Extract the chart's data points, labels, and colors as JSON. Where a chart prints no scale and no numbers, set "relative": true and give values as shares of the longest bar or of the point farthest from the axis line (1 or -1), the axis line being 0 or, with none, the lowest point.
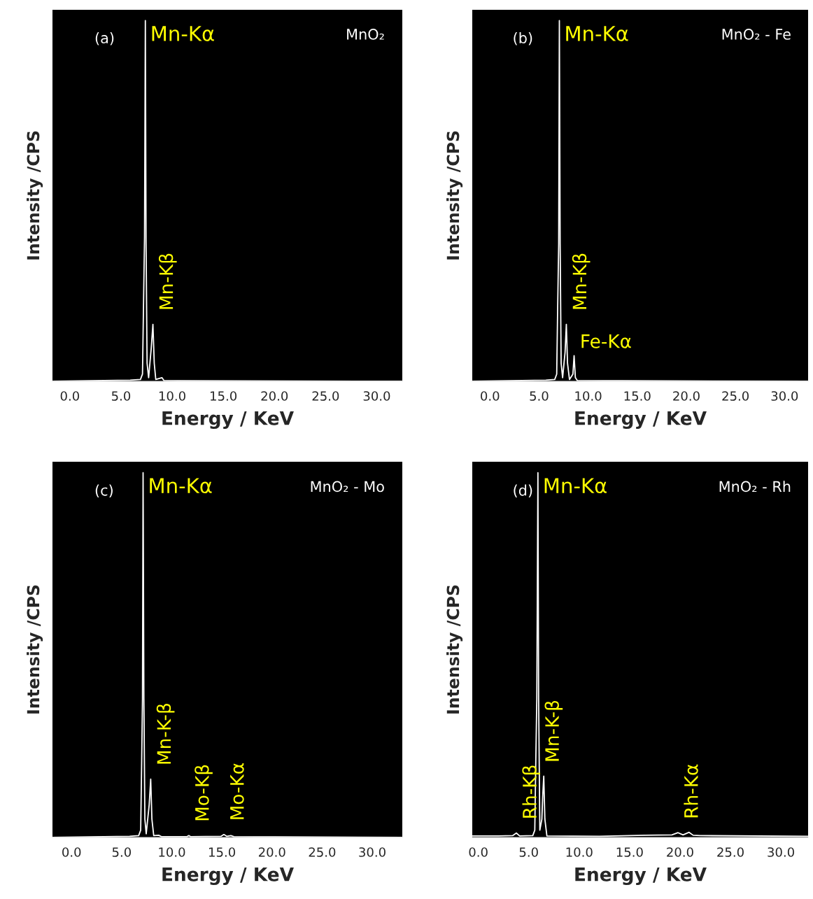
{
  "chart_data": [
    {
      "type": "line",
      "relative": true,
      "xlabel": "Energy / KeV",
      "ylabel": "Intensity /CPS",
      "xlim": [
        -1.7,
        32.5
      ],
      "xticks": [
        {
          "value": 0,
          "label": "0.0"
        },
        {
          "value": 5,
          "label": "5.0"
        },
        {
          "value": 10,
          "label": "10.0"
        },
        {
          "value": 15,
          "label": "15.0"
        },
        {
          "value": 20,
          "label": "20.0"
        },
        {
          "value": 25,
          "label": "25.0"
        },
        {
          "value": 30,
          "label": "30.0"
        }
      ],
      "tick_labels": "x",
      "grid": false,
      "legend": false,
      "series": [
        {
          "color": "#ffffff",
          "x": [
            -1.7,
            5.9,
            6.9,
            7.1,
            7.2,
            7.3,
            7.38,
            7.45,
            7.55,
            7.7,
            7.95,
            8.12,
            8.25,
            8.4,
            9.0,
            9.2,
            32.5
          ],
          "values": [
            0,
            0.003,
            0.005,
            0.02,
            0.21,
            0.4,
            1.0,
            0.38,
            0.05,
            0.01,
            0.09,
            0.158,
            0.05,
            0.005,
            0.01,
            0.002,
            0
          ]
        }
      ],
      "annotations": [
        "(a)",
        "MnO₂",
        {
          "text": "Mn-Kα",
          "x": 7.38,
          "y": 1.0
        },
        {
          "text": "Mn-Kβ",
          "x": 8.12,
          "y": 0.158
        }
      ]
    },
    {
      "type": "line",
      "relative": true,
      "xlabel": "Energy / KeV",
      "ylabel": "Intensity /CPS",
      "xlim": [
        -1.9,
        33
      ],
      "xticks": [
        {
          "value": 0,
          "label": "0.0"
        },
        {
          "value": 5,
          "label": "5.0"
        },
        {
          "value": 10,
          "label": "10.0"
        },
        {
          "value": 15,
          "label": "15.0"
        },
        {
          "value": 20,
          "label": "20.0"
        },
        {
          "value": 25,
          "label": "25.0"
        },
        {
          "value": 30,
          "label": "30.0"
        }
      ],
      "tick_labels": "x",
      "grid": false,
      "legend": false,
      "series": [
        {
          "color": "#ffffff",
          "x": [
            -1.9,
            5.8,
            6.7,
            6.9,
            7.0,
            7.08,
            7.14,
            7.22,
            7.32,
            7.45,
            7.75,
            7.9,
            8.02,
            8.2,
            8.7,
            9.0,
            11.5,
            11.7,
            11.9,
            14.9,
            15.2,
            15.5,
            15.9,
            16.2,
            33
          ],
          "values": [
            0,
            0.003,
            0.005,
            0.02,
            0.21,
            0.38,
            1.0,
            0.38,
            0.05,
            0.01,
            0.09,
            0.16,
            0.05,
            0.005,
            0.006,
            0.002,
            0.002,
            0.005,
            0.002,
            0.003,
            0.008,
            0.003,
            0.005,
            0.002,
            0
          ]
        }
      ],
      "annotations": [
        "(c)",
        "MnO₂ - Mo",
        {
          "text": "Mn-Kα",
          "x": 7.14,
          "y": 1.0
        },
        {
          "text": "Mn-K-β",
          "x": 7.9,
          "y": 0.16
        },
        {
          "text": "Mo-Kβ",
          "x": 11.7,
          "y": 0.005
        },
        {
          "text": "Mo-Kα",
          "x": 15.2,
          "y": 0.008
        }
      ]
    },
    {
      "type": "line",
      "relative": true,
      "xlabel": "Energy / KeV",
      "ylabel": "Intensity /CPS",
      "xlim": [
        -1.8,
        32.4
      ],
      "xticks": [
        {
          "value": 0,
          "label": "0.0"
        },
        {
          "value": 5,
          "label": "5.0"
        },
        {
          "value": 10,
          "label": "10.0"
        },
        {
          "value": 15,
          "label": "15.0"
        },
        {
          "value": 20,
          "label": "20.0"
        },
        {
          "value": 25,
          "label": "25.0"
        },
        {
          "value": 30,
          "label": "30.0"
        }
      ],
      "tick_labels": "x",
      "grid": false,
      "legend": false,
      "series": [
        {
          "color": "#ffffff",
          "x": [
            -1.8,
            5.7,
            6.6,
            6.8,
            6.9,
            7.0,
            7.07,
            7.15,
            7.25,
            7.4,
            7.65,
            7.78,
            7.9,
            8.1,
            8.45,
            8.57,
            8.7,
            8.9,
            32.4
          ],
          "values": [
            0,
            0.003,
            0.005,
            0.02,
            0.21,
            0.38,
            1.0,
            0.38,
            0.05,
            0.01,
            0.08,
            0.158,
            0.05,
            0.005,
            0.02,
            0.071,
            0.01,
            0.002,
            0
          ]
        }
      ],
      "annotations": [
        "(b)",
        "MnO₂ - Fe",
        {
          "text": "Mn-Kα",
          "x": 7.07,
          "y": 1.0
        },
        {
          "text": "Mn-Kβ",
          "x": 7.78,
          "y": 0.158
        },
        {
          "text": "Fe-Kα",
          "x": 8.57,
          "y": 0.071
        }
      ]
    },
    {
      "type": "line",
      "relative": true,
      "xlabel": "Energy / KeV",
      "ylabel": "Intensity /CPS",
      "xlim": [
        -0.6,
        32.7
      ],
      "xticks": [
        {
          "value": 0,
          "label": "0.0"
        },
        {
          "value": 5,
          "label": "5.0"
        },
        {
          "value": 10,
          "label": "10.0"
        },
        {
          "value": 15,
          "label": "15.0"
        },
        {
          "value": 20,
          "label": "20.0"
        },
        {
          "value": 25,
          "label": "25.0"
        },
        {
          "value": 30,
          "label": "30.0"
        }
      ],
      "tick_labels": "x",
      "grid": false,
      "legend": false,
      "series": [
        {
          "color": "#ffffff",
          "x": [
            -0.6,
            2.0,
            3.4,
            3.77,
            4.1,
            5.4,
            5.6,
            5.7,
            5.8,
            5.91,
            5.98,
            6.1,
            6.3,
            6.38,
            6.49,
            6.6,
            6.8,
            12.0,
            16.5,
            19.2,
            19.8,
            20.3,
            20.9,
            21.3,
            22.0,
            32.7
          ],
          "values": [
            0.004,
            0.004,
            0.005,
            0.012,
            0.004,
            0.005,
            0.02,
            0.21,
            0.38,
            1.0,
            0.38,
            0.02,
            0.05,
            0.11,
            0.168,
            0.05,
            0.004,
            0.003,
            0.006,
            0.007,
            0.013,
            0.007,
            0.014,
            0.006,
            0.005,
            0.003
          ]
        }
      ],
      "annotations": [
        "(d)",
        "MnO₂ - Rh",
        {
          "text": "Mn-Kα",
          "x": 5.91,
          "y": 1.0
        },
        {
          "text": "Mn-K-β",
          "x": 6.0,
          "y": 0.168
        },
        {
          "text": "Rh-Kβ",
          "x": 3.77,
          "y": 0.012
        },
        {
          "text": "Rh-Kα",
          "x": 19.8,
          "y": 0.013
        }
      ]
    }
  ]
}
